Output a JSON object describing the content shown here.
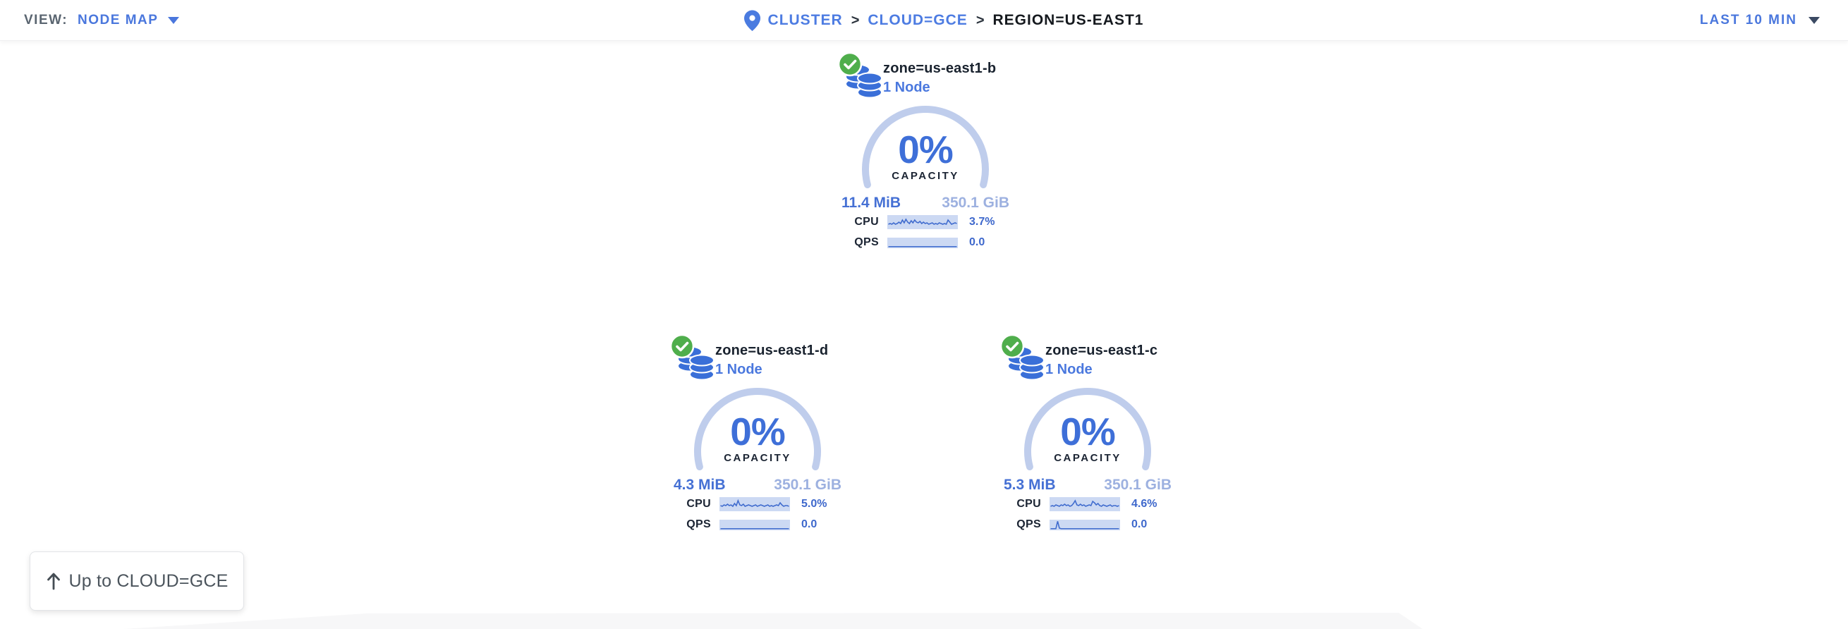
{
  "header": {
    "view_label": "VIEW:",
    "view_value": "NODE MAP",
    "breadcrumb": {
      "separator": ">",
      "items": [
        {
          "label": "CLUSTER"
        },
        {
          "label": "CLOUD=GCE"
        },
        {
          "label": "REGION=US-EAST1"
        }
      ]
    },
    "time_range": "LAST 10 MIN"
  },
  "labels": {
    "capacity": "CAPACITY",
    "cpu": "CPU",
    "qps": "QPS"
  },
  "zones": [
    {
      "name": "zone=us-east1-b",
      "node_count": "1 Node",
      "capacity_pct": "0%",
      "used": "11.4 MiB",
      "total": "350.1 GiB",
      "cpu_value": "3.7%",
      "qps_value": "0.0",
      "cpu_spark": [
        13,
        12,
        13,
        11,
        13,
        12,
        10,
        12,
        7,
        11,
        6,
        10,
        12,
        8,
        11,
        7,
        10,
        11,
        9,
        12,
        10,
        12,
        11,
        13,
        12,
        11,
        13,
        12,
        13,
        11,
        12,
        13,
        12,
        13,
        7,
        10,
        13,
        12,
        11,
        12
      ],
      "qps_spark": [
        17,
        17
      ]
    },
    {
      "name": "zone=us-east1-d",
      "node_count": "1 Node",
      "capacity_pct": "0%",
      "used": "4.3 MiB",
      "total": "350.1 GiB",
      "cpu_value": "5.0%",
      "qps_value": "0.0",
      "cpu_spark": [
        12,
        13,
        11,
        12,
        10,
        12,
        11,
        13,
        9,
        12,
        5,
        11,
        12,
        10,
        13,
        12,
        11,
        12,
        13,
        12,
        11,
        13,
        12,
        11,
        12,
        13,
        12,
        11,
        13,
        12,
        13,
        12,
        11,
        12,
        8,
        11,
        13,
        12,
        12,
        13
      ],
      "qps_spark": [
        17,
        17
      ]
    },
    {
      "name": "zone=us-east1-c",
      "node_count": "1 Node",
      "capacity_pct": "0%",
      "used": "5.3 MiB",
      "total": "350.1 GiB",
      "cpu_value": "4.6%",
      "qps_value": "0.0",
      "cpu_spark": [
        13,
        12,
        13,
        11,
        12,
        13,
        11,
        12,
        10,
        12,
        11,
        13,
        12,
        9,
        5,
        11,
        12,
        10,
        12,
        11,
        13,
        12,
        11,
        12,
        6,
        8,
        11,
        9,
        12,
        13,
        11,
        12,
        13,
        12,
        11,
        13,
        12,
        12,
        13,
        12
      ],
      "qps_spark": [
        17,
        17,
        17,
        17,
        3,
        16,
        17,
        17,
        17,
        17,
        17,
        17,
        17,
        17,
        17,
        17,
        17,
        17,
        17,
        17,
        17,
        17,
        17,
        17,
        17,
        17,
        17,
        17,
        17,
        17,
        17,
        17,
        17,
        17,
        17,
        17,
        17,
        17,
        17,
        17
      ]
    }
  ],
  "up_button": {
    "label": "Up to CLOUD=GCE"
  },
  "colors": {
    "primary_blue": "#3e6fd8",
    "link_blue": "#4d7ce2",
    "light_value_blue": "#9db1e0",
    "arc_blue": "#bfcdec",
    "spark_bg": "#ccd9f3",
    "spark_line": "#3f6bce",
    "status_green": "#4fae4c",
    "dark_text": "#1b2433"
  }
}
